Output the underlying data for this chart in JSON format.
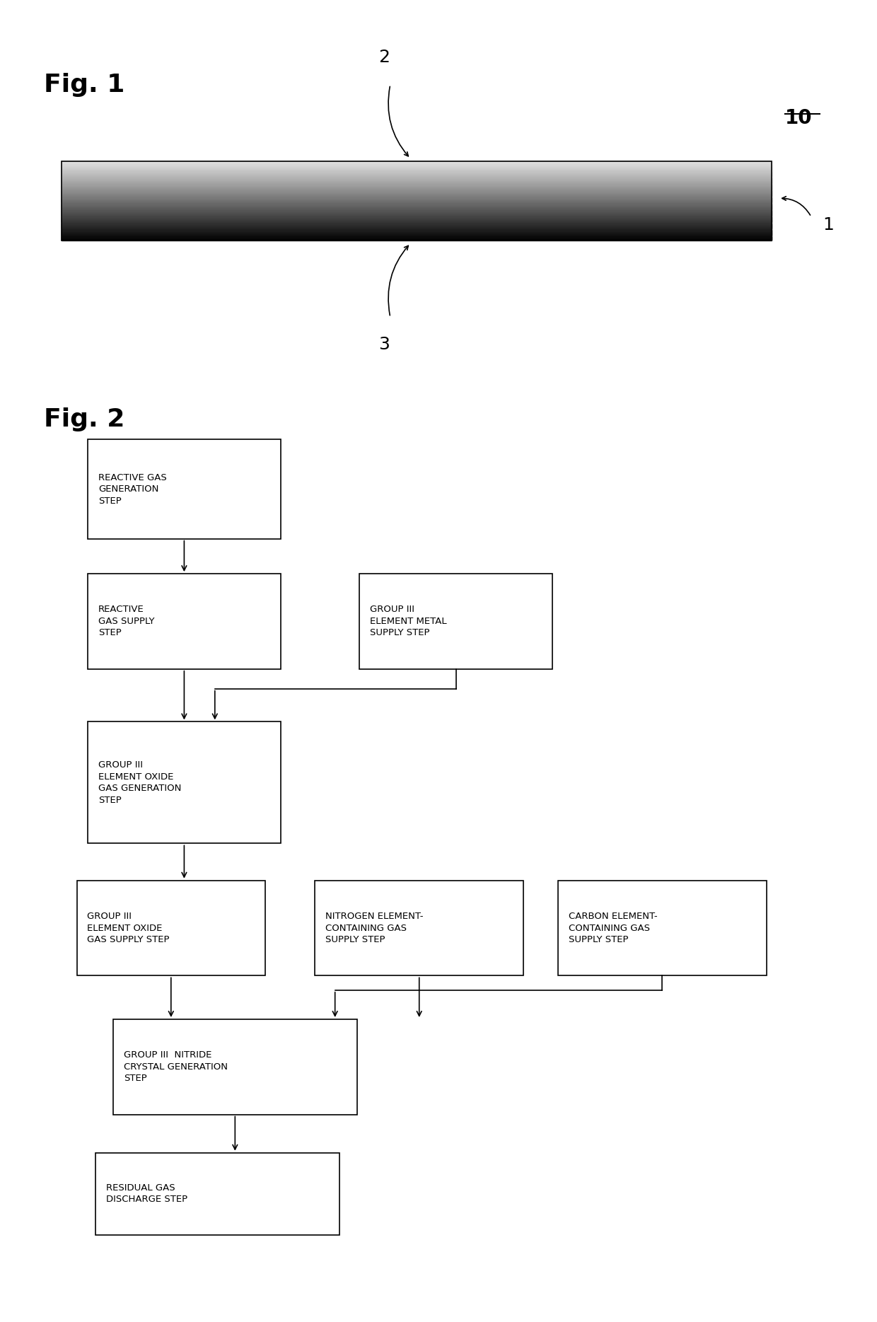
{
  "fig_width": 12.4,
  "fig_height": 18.69,
  "bg_color": "#ffffff",
  "fig1_label": "Fig. 1",
  "fig2_label": "Fig. 2",
  "label_10": "10",
  "label_1": "1",
  "label_2": "2",
  "label_3": "3"
}
